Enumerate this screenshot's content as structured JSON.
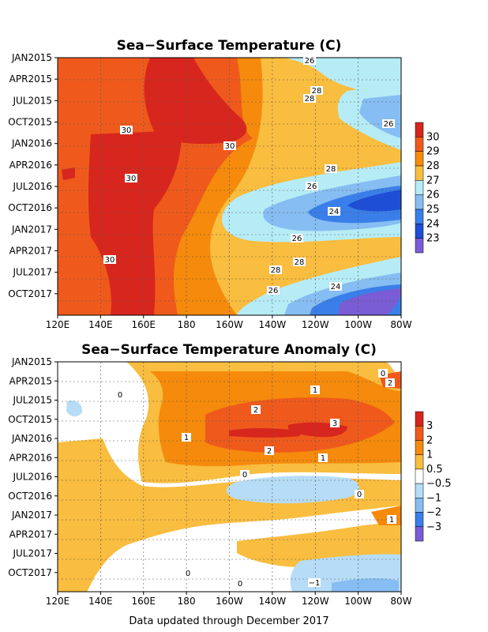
{
  "chart_data": [
    {
      "type": "heatmap",
      "title": "Sea−Surface Temperature (C)",
      "x_ticks": [
        "120E",
        "140E",
        "160E",
        "180",
        "160W",
        "140W",
        "120W",
        "100W",
        "80W"
      ],
      "y_ticks": [
        "JAN2015",
        "APR2015",
        "JUL2015",
        "OCT2015",
        "JAN2016",
        "APR2016",
        "JUL2016",
        "OCT2016",
        "JAN2017",
        "APR2017",
        "JUL2017",
        "OCT2017"
      ],
      "colorbar": {
        "labels": [
          "30",
          "29",
          "28",
          "27",
          "26",
          "25",
          "24",
          "23"
        ],
        "colors": [
          "#d7261e",
          "#ef5a1c",
          "#f58a0c",
          "#f9bd3f",
          "#b6ecf6",
          "#86bdf2",
          "#3a7fe9",
          "#1e4ed6",
          "#7a5cd4"
        ]
      },
      "contour_labels": [
        "26",
        "28",
        "28",
        "26",
        "30",
        "30",
        "28",
        "30",
        "26",
        "24",
        "26",
        "28",
        "30",
        "28",
        "26",
        "24"
      ],
      "color_key": [
        "#d7261e",
        "#ef5a1c",
        "#f58a0c",
        "#f9bd3f",
        "#b6ecf6",
        "#86bdf2",
        "#3a7fe9",
        "#1e4ed6",
        "#7a5cd4"
      ]
    },
    {
      "type": "heatmap",
      "title": "Sea−Surface Temperature Anomaly (C)",
      "x_ticks": [
        "120E",
        "140E",
        "160E",
        "180",
        "160W",
        "140W",
        "120W",
        "100W",
        "80W"
      ],
      "y_ticks": [
        "JAN2015",
        "APR2015",
        "JUL2015",
        "OCT2015",
        "JAN2016",
        "APR2016",
        "JUL2016",
        "OCT2016",
        "JAN2017",
        "APR2017",
        "JUL2017",
        "OCT2017"
      ],
      "colorbar": {
        "labels": [
          "3",
          "2",
          "1",
          "0.5",
          "−0.5",
          "−1",
          "−2",
          "−3"
        ],
        "colors": [
          "#d7261e",
          "#ef5a1c",
          "#f58a0c",
          "#f9bd3f",
          "#ffffff",
          "#b6dcf7",
          "#86bdf2",
          "#3a7fe9",
          "#7a5cd4"
        ]
      },
      "contour_labels": [
        "0",
        "1",
        "2",
        "0",
        "2",
        "3",
        "1",
        "2",
        "1",
        "0",
        "0",
        "1",
        "0",
        "0",
        "−1"
      ]
    }
  ],
  "footer": "Data updated through December 2017"
}
